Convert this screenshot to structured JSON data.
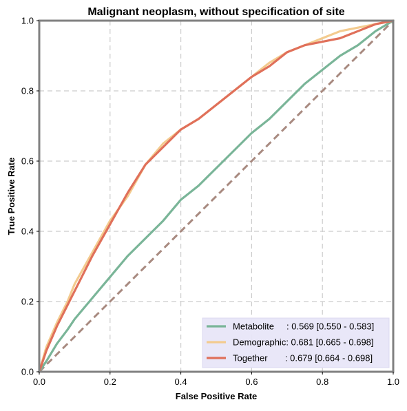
{
  "chart_data": {
    "type": "line",
    "title": "Malignant neoplasm, without specification of site",
    "xlabel": "False Positive Rate",
    "ylabel": "True Positive Rate",
    "xlim": [
      0,
      1
    ],
    "ylim": [
      0,
      1
    ],
    "xticks": [
      "0.0",
      "0.2",
      "0.4",
      "0.6",
      "0.8",
      "1.0"
    ],
    "yticks": [
      "0.0",
      "0.2",
      "0.4",
      "0.6",
      "0.8",
      "1.0"
    ],
    "grid": true,
    "legend_position": "lower-right",
    "chance_line": {
      "x": [
        0,
        1
      ],
      "y": [
        0,
        1
      ],
      "color": "#a88a80"
    },
    "series": [
      {
        "name": "Metabolite",
        "legend_label": "Metabolite     : 0.569 [0.550 - 0.583]",
        "color": "#7ab598",
        "x": [
          0,
          0.02,
          0.05,
          0.08,
          0.1,
          0.15,
          0.2,
          0.25,
          0.3,
          0.35,
          0.4,
          0.45,
          0.5,
          0.55,
          0.6,
          0.65,
          0.7,
          0.75,
          0.8,
          0.85,
          0.9,
          0.95,
          1.0
        ],
        "y": [
          0,
          0.03,
          0.08,
          0.12,
          0.15,
          0.21,
          0.27,
          0.33,
          0.38,
          0.43,
          0.49,
          0.53,
          0.58,
          0.63,
          0.68,
          0.72,
          0.77,
          0.82,
          0.86,
          0.9,
          0.93,
          0.97,
          1.0
        ]
      },
      {
        "name": "Demographic",
        "legend_label": "Demographic: 0.681 [0.665 - 0.698]",
        "color": "#f3cb8f",
        "x": [
          0,
          0.02,
          0.05,
          0.08,
          0.1,
          0.15,
          0.2,
          0.25,
          0.3,
          0.35,
          0.4,
          0.45,
          0.5,
          0.55,
          0.6,
          0.65,
          0.7,
          0.75,
          0.8,
          0.85,
          0.9,
          0.95,
          1.0
        ],
        "y": [
          0,
          0.07,
          0.14,
          0.2,
          0.25,
          0.34,
          0.43,
          0.5,
          0.59,
          0.65,
          0.69,
          0.72,
          0.76,
          0.8,
          0.84,
          0.88,
          0.91,
          0.93,
          0.95,
          0.97,
          0.98,
          0.99,
          1.0
        ]
      },
      {
        "name": "Together",
        "legend_label": "Together       : 0.679 [0.664 - 0.698]",
        "color": "#e0705a",
        "x": [
          0,
          0.02,
          0.05,
          0.08,
          0.1,
          0.15,
          0.2,
          0.25,
          0.3,
          0.35,
          0.4,
          0.45,
          0.5,
          0.55,
          0.6,
          0.65,
          0.7,
          0.75,
          0.8,
          0.85,
          0.9,
          0.95,
          1.0
        ],
        "y": [
          0,
          0.06,
          0.13,
          0.19,
          0.23,
          0.33,
          0.42,
          0.51,
          0.59,
          0.64,
          0.69,
          0.72,
          0.76,
          0.8,
          0.84,
          0.87,
          0.91,
          0.93,
          0.94,
          0.95,
          0.97,
          0.99,
          1.0
        ]
      }
    ]
  }
}
